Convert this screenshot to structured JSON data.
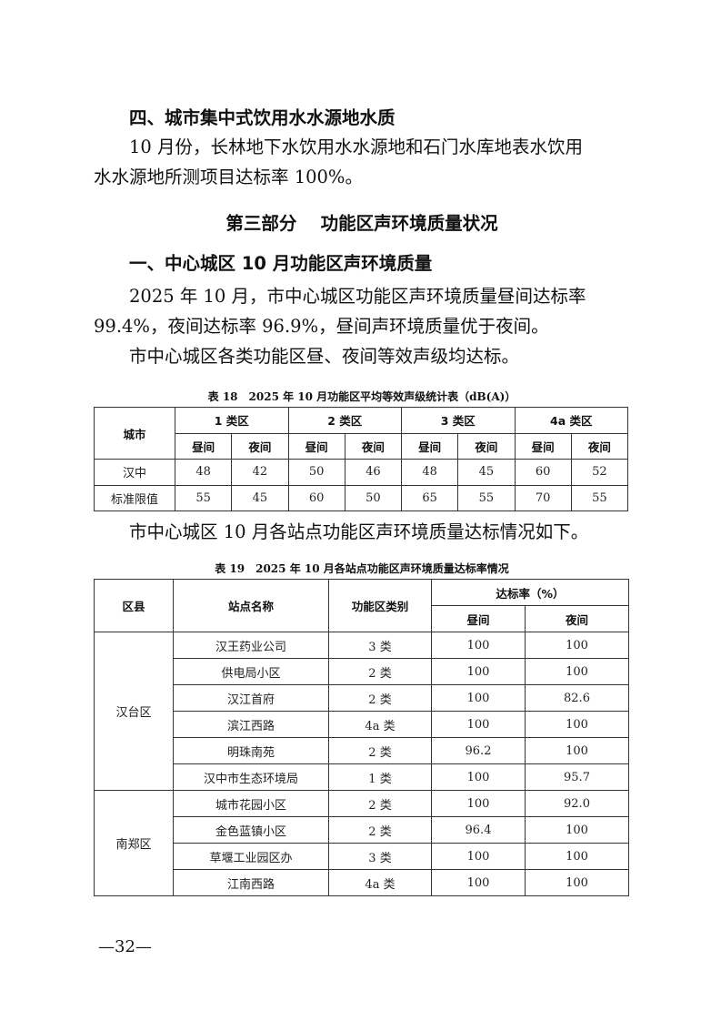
{
  "section4": {
    "heading": "四、城市集中式饮用水水源地水质",
    "para_line1": "10 月份，长林地下水饮用水水源地和石门水库地表水饮用",
    "para_line2": "水水源地所测项目达标率 100%。"
  },
  "part3": {
    "title": "第三部分　 功能区声环境质量状况",
    "subheading": "一、中心城区 10 月功能区声环境质量",
    "para1_line1": "2025 年 10 月，市中心城区功能区声环境质量昼间达标率",
    "para1_line2": "99.4%，夜间达标率 96.9%，昼间声环境质量优于夜间。",
    "para2": "市中心城区各类功能区昼、夜间等效声级均达标。",
    "para3": "市中心城区 10 月各站点功能区声环境质量达标情况如下。"
  },
  "table18": {
    "caption": "表 18　2025 年 10 月功能区平均等效声级统计表（dB(A)）",
    "city_header": "城市",
    "zones": [
      "1 类区",
      "2 类区",
      "3 类区",
      "4a 类区"
    ],
    "day": "昼间",
    "night": "夜间",
    "rows": [
      {
        "label": "汉中",
        "values": [
          "48",
          "42",
          "50",
          "46",
          "48",
          "45",
          "60",
          "52"
        ]
      },
      {
        "label": "标准限值",
        "values": [
          "55",
          "45",
          "60",
          "50",
          "65",
          "55",
          "70",
          "55"
        ]
      }
    ]
  },
  "table19": {
    "caption": "表 19　2025 年 10 月各站点功能区声环境质量达标率情况",
    "headers": {
      "district": "区县",
      "station": "站点名称",
      "zone": "功能区类别",
      "rate": "达标率（%）",
      "day": "昼间",
      "night": "夜间"
    },
    "groups": [
      {
        "district": "汉台区",
        "rows": [
          {
            "station": "汉王药业公司",
            "zone": "3 类",
            "day": "100",
            "night": "100"
          },
          {
            "station": "供电局小区",
            "zone": "2 类",
            "day": "100",
            "night": "100"
          },
          {
            "station": "汉江首府",
            "zone": "2 类",
            "day": "100",
            "night": "82.6"
          },
          {
            "station": "滨江西路",
            "zone": "4a 类",
            "day": "100",
            "night": "100"
          },
          {
            "station": "明珠南苑",
            "zone": "2 类",
            "day": "96.2",
            "night": "100"
          },
          {
            "station": "汉中市生态环境局",
            "zone": "1 类",
            "day": "100",
            "night": "95.7"
          }
        ]
      },
      {
        "district": "南郑区",
        "rows": [
          {
            "station": "城市花园小区",
            "zone": "2 类",
            "day": "100",
            "night": "92.0"
          },
          {
            "station": "金色蓝镇小区",
            "zone": "2 类",
            "day": "96.4",
            "night": "100"
          },
          {
            "station": "草堰工业园区办",
            "zone": "3 类",
            "day": "100",
            "night": "100"
          },
          {
            "station": "江南西路",
            "zone": "4a 类",
            "day": "100",
            "night": "100"
          }
        ]
      }
    ]
  },
  "page_number": "—32—"
}
